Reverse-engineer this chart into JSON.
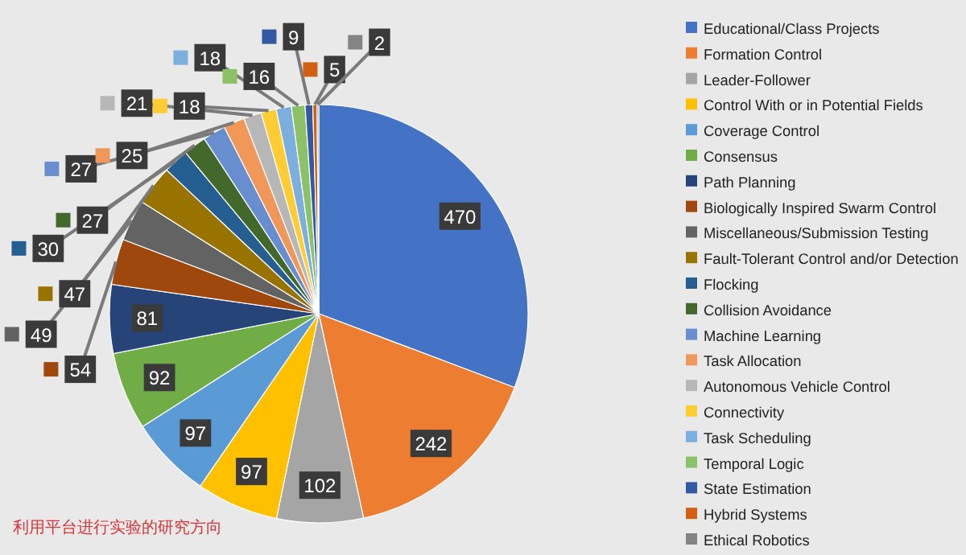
{
  "chart_data": {
    "type": "pie",
    "categories": [
      "Educational/Class Projects",
      "Formation Control",
      "Leader-Follower",
      "Control With or in Potential Fields",
      "Coverage Control",
      "Consensus",
      "Path Planning",
      "Biologically Inspired Swarm Control",
      "Miscellaneous/Submission Testing",
      "Fault-Tolerant Control and/or Detection",
      "Flocking",
      "Collision Avoidance",
      "Machine Learning",
      "Task Allocation",
      "Autonomous Vehicle Control",
      "Connectivity",
      "Task Scheduling",
      "Temporal Logic",
      "State Estimation",
      "Hybrid Systems",
      "Ethical Robotics"
    ],
    "values": [
      470,
      242,
      102,
      97,
      97,
      92,
      81,
      54,
      49,
      47,
      30,
      27,
      27,
      25,
      21,
      18,
      18,
      16,
      9,
      5,
      2
    ],
    "colors": [
      "#4472c4",
      "#ed7d31",
      "#a5a5a5",
      "#ffc000",
      "#5b9bd5",
      "#70ad47",
      "#264478",
      "#9e480e",
      "#636363",
      "#997300",
      "#255e91",
      "#43682b",
      "#698ed0",
      "#f1975a",
      "#b7b7b7",
      "#ffcd33",
      "#7cafdd",
      "#8cc168",
      "#335aa1",
      "#d26012",
      "#848484"
    ],
    "data_labels": true,
    "legend": "right",
    "annotations": [
      "利用平台进行实验的研究方向"
    ]
  }
}
